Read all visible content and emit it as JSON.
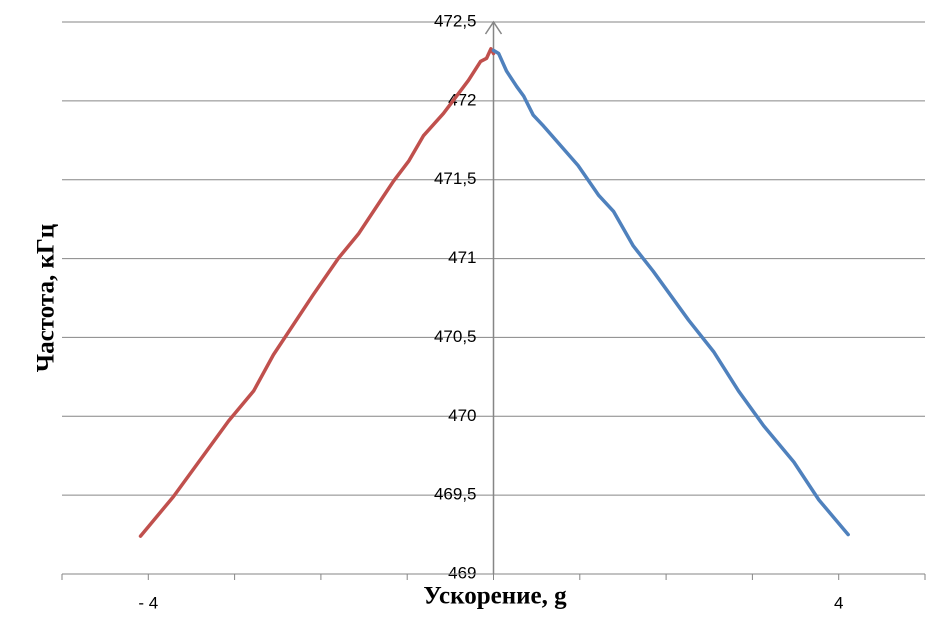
{
  "chart_data": {
    "type": "line",
    "y_label": "Частота, кГц",
    "x_label": "Ускорение, g",
    "xlim": [
      -5,
      5
    ],
    "xticks": [
      {
        "value": -5,
        "label": null
      },
      {
        "value": -4,
        "label": "- 4"
      },
      {
        "value": -3,
        "label": null
      },
      {
        "value": -2,
        "label": null
      },
      {
        "value": -1,
        "label": null
      },
      {
        "value": 0,
        "label": null
      },
      {
        "value": 1,
        "label": null
      },
      {
        "value": 2,
        "label": null
      },
      {
        "value": 3,
        "label": null
      },
      {
        "value": 4,
        "label": "4"
      },
      {
        "value": 5,
        "label": null
      }
    ],
    "ylim": [
      469,
      472.5
    ],
    "yticks": [
      469,
      {
        "value": 469.5,
        "label": "469,5"
      },
      470,
      {
        "value": 470.5,
        "label": "470,5"
      },
      471,
      {
        "value": 471.5,
        "label": "471,5"
      },
      472,
      {
        "value": 472.5,
        "label": "472,5"
      }
    ],
    "grid": true,
    "series": [
      {
        "color": "#c0504d",
        "x": [
          -4.09,
          -3.71,
          -3.07,
          -2.78,
          -2.55,
          -2.09,
          -1.8,
          -1.56,
          -1.16,
          -0.98,
          -0.81,
          -0.58,
          -0.29,
          -0.15,
          -0.08,
          -0.03,
          0
        ],
        "values": [
          469.24,
          469.49,
          469.97,
          470.16,
          470.39,
          470.77,
          471.0,
          471.16,
          471.49,
          471.62,
          471.78,
          471.92,
          472.13,
          472.25,
          472.27,
          472.33,
          472.3
        ]
      },
      {
        "color": "#4f81bd",
        "x": [
          0,
          0.06,
          0.15,
          0.27,
          0.35,
          0.46,
          0.58,
          0.98,
          1.22,
          1.39,
          1.62,
          1.85,
          2.26,
          2.55,
          2.84,
          3.13,
          3.48,
          3.77,
          4.11
        ],
        "values": [
          472.32,
          472.3,
          472.19,
          472.09,
          472.03,
          471.91,
          471.84,
          471.59,
          471.4,
          471.3,
          471.08,
          470.92,
          470.61,
          470.41,
          470.16,
          469.94,
          469.71,
          469.47,
          469.25
        ]
      }
    ]
  }
}
